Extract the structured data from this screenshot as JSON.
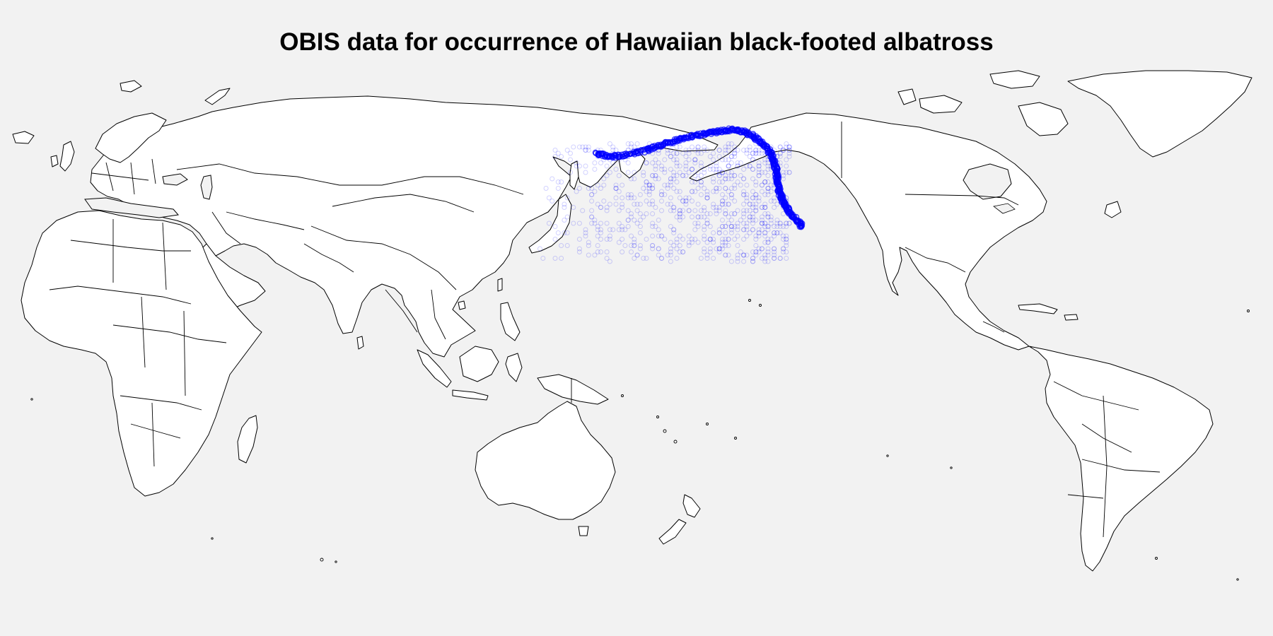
{
  "title": "OBIS data for occurrence of Hawaiian black-footed albatross",
  "map": {
    "projection": "pacific-centered equirectangular",
    "center_longitude": 150,
    "land_color": "#ffffff",
    "ocean_color": "#f2f2f2",
    "border_color": "#000000"
  },
  "occurrence_style": {
    "marker": "open-circle",
    "color": "#0000ff"
  },
  "occurrence_dense_track": [
    [
      143.5,
      54.0
    ],
    [
      146.0,
      53.5
    ],
    [
      149.0,
      53.0
    ],
    [
      152.0,
      53.2
    ],
    [
      156.0,
      54.0
    ],
    [
      160.0,
      55.0
    ],
    [
      163.0,
      56.0
    ],
    [
      166.0,
      57.0
    ],
    [
      169.0,
      57.8
    ],
    [
      172.0,
      58.6
    ],
    [
      175.0,
      59.3
    ],
    [
      178.0,
      59.9
    ],
    [
      181.0,
      60.5
    ],
    [
      184.0,
      61.0
    ],
    [
      187.0,
      61.4
    ],
    [
      190.0,
      61.3
    ],
    [
      192.5,
      60.6
    ],
    [
      195.0,
      59.5
    ],
    [
      197.0,
      58.0
    ],
    [
      199.0,
      56.3
    ],
    [
      200.5,
      54.5
    ],
    [
      201.5,
      52.5
    ],
    [
      202.3,
      50.5
    ],
    [
      202.8,
      48.5
    ],
    [
      203.0,
      46.5
    ],
    [
      203.2,
      44.5
    ],
    [
      203.6,
      42.5
    ],
    [
      204.2,
      40.5
    ],
    [
      205.0,
      38.8
    ],
    [
      206.0,
      37.0
    ],
    [
      207.0,
      35.5
    ],
    [
      208.5,
      33.8
    ],
    [
      210.0,
      32.2
    ],
    [
      211.5,
      30.8
    ]
  ],
  "occurrence_offshore_region": {
    "lon_range": [
      123,
      207
    ],
    "lat_range": [
      20,
      57
    ]
  }
}
